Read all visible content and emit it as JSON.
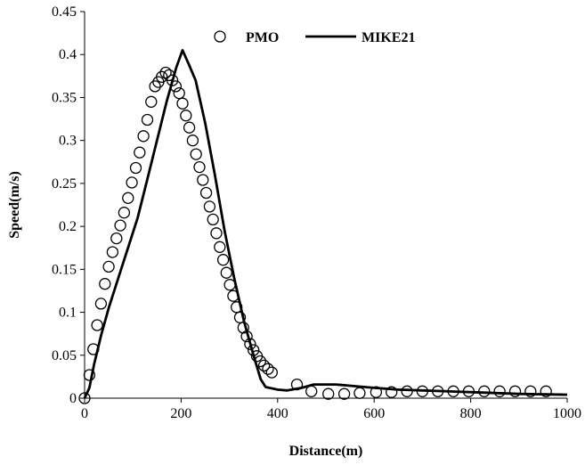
{
  "chart_data": {
    "type": "scatter",
    "xlabel": "Distance(m)",
    "ylabel": "Speed(m/s)",
    "xlim": [
      0,
      1000
    ],
    "ylim": [
      0,
      0.45
    ],
    "x_ticks": [
      "0",
      "200",
      "400",
      "600",
      "800",
      "1000"
    ],
    "y_ticks": [
      "0",
      "0.05",
      "0.1",
      "0.15",
      "0.2",
      "0.25",
      "0.3",
      "0.35",
      "0.4",
      "0.45"
    ],
    "grid": false,
    "legend_position": "top",
    "series": [
      {
        "name": "PMO",
        "style": "open-circle",
        "color": "#000000",
        "points": [
          [
            0,
            0.0
          ],
          [
            10,
            0.027
          ],
          [
            18,
            0.057
          ],
          [
            26,
            0.085
          ],
          [
            34,
            0.11
          ],
          [
            42,
            0.133
          ],
          [
            50,
            0.153
          ],
          [
            58,
            0.17
          ],
          [
            66,
            0.186
          ],
          [
            74,
            0.201
          ],
          [
            82,
            0.216
          ],
          [
            90,
            0.233
          ],
          [
            98,
            0.251
          ],
          [
            106,
            0.268
          ],
          [
            114,
            0.286
          ],
          [
            122,
            0.305
          ],
          [
            130,
            0.324
          ],
          [
            138,
            0.345
          ],
          [
            146,
            0.363
          ],
          [
            153,
            0.368
          ],
          [
            160,
            0.374
          ],
          [
            168,
            0.379
          ],
          [
            175,
            0.376
          ],
          [
            182,
            0.37
          ],
          [
            189,
            0.363
          ],
          [
            196,
            0.355
          ],
          [
            203,
            0.343
          ],
          [
            210,
            0.329
          ],
          [
            217,
            0.315
          ],
          [
            224,
            0.3
          ],
          [
            231,
            0.284
          ],
          [
            238,
            0.269
          ],
          [
            245,
            0.254
          ],
          [
            252,
            0.239
          ],
          [
            259,
            0.223
          ],
          [
            266,
            0.208
          ],
          [
            273,
            0.192
          ],
          [
            280,
            0.176
          ],
          [
            287,
            0.161
          ],
          [
            294,
            0.146
          ],
          [
            301,
            0.132
          ],
          [
            308,
            0.119
          ],
          [
            315,
            0.106
          ],
          [
            322,
            0.094
          ],
          [
            329,
            0.082
          ],
          [
            336,
            0.072
          ],
          [
            343,
            0.063
          ],
          [
            350,
            0.056
          ],
          [
            357,
            0.049
          ],
          [
            364,
            0.043
          ],
          [
            372,
            0.038
          ],
          [
            380,
            0.034
          ],
          [
            388,
            0.03
          ],
          [
            440,
            0.016
          ],
          [
            470,
            0.008
          ],
          [
            505,
            0.005
          ],
          [
            538,
            0.005
          ],
          [
            570,
            0.006
          ],
          [
            604,
            0.007
          ],
          [
            636,
            0.007
          ],
          [
            668,
            0.008
          ],
          [
            700,
            0.008
          ],
          [
            732,
            0.008
          ],
          [
            764,
            0.008
          ],
          [
            796,
            0.008
          ],
          [
            828,
            0.008
          ],
          [
            860,
            0.008
          ],
          [
            892,
            0.008
          ],
          [
            924,
            0.008
          ],
          [
            956,
            0.008
          ]
        ]
      },
      {
        "name": "MIKE21",
        "style": "solid-line",
        "color": "#000000",
        "points": [
          [
            0,
            0.0
          ],
          [
            10,
            0.012
          ],
          [
            20,
            0.04
          ],
          [
            35,
            0.075
          ],
          [
            50,
            0.105
          ],
          [
            70,
            0.14
          ],
          [
            90,
            0.175
          ],
          [
            110,
            0.21
          ],
          [
            130,
            0.255
          ],
          [
            150,
            0.3
          ],
          [
            170,
            0.345
          ],
          [
            190,
            0.385
          ],
          [
            203,
            0.405
          ],
          [
            215,
            0.39
          ],
          [
            230,
            0.37
          ],
          [
            250,
            0.32
          ],
          [
            270,
            0.26
          ],
          [
            290,
            0.195
          ],
          [
            310,
            0.14
          ],
          [
            330,
            0.09
          ],
          [
            350,
            0.05
          ],
          [
            365,
            0.022
          ],
          [
            375,
            0.013
          ],
          [
            400,
            0.01
          ],
          [
            420,
            0.009
          ],
          [
            450,
            0.012
          ],
          [
            475,
            0.016
          ],
          [
            520,
            0.016
          ],
          [
            560,
            0.014
          ],
          [
            600,
            0.012
          ],
          [
            650,
            0.01
          ],
          [
            700,
            0.009
          ],
          [
            800,
            0.007
          ],
          [
            900,
            0.005
          ],
          [
            1000,
            0.004
          ]
        ]
      }
    ]
  }
}
